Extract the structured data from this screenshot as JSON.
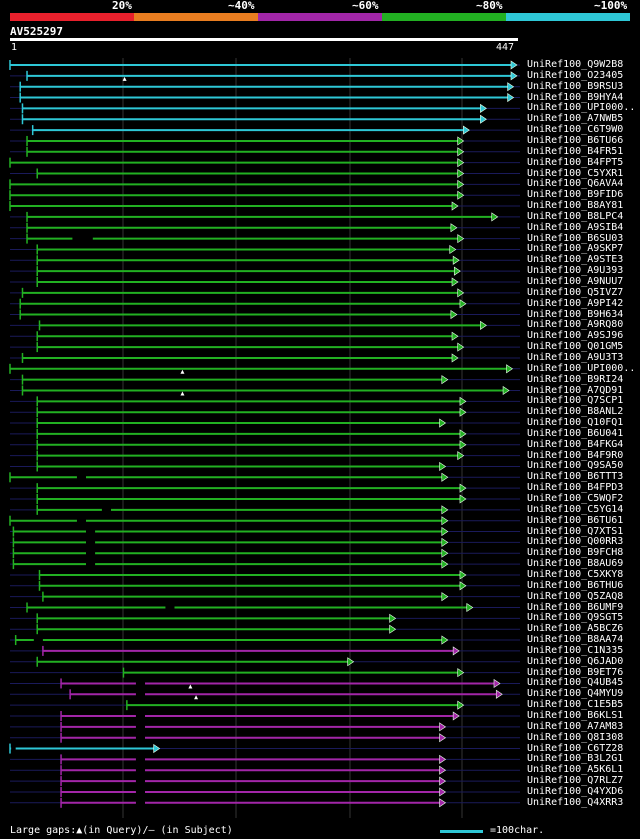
{
  "legend": {
    "labels": [
      "20%",
      "~40%",
      "~60%",
      "~80%",
      "~100%"
    ],
    "colors": [
      "#e8202c",
      "#e87d20",
      "#a226a8",
      "#22b022",
      "#2ec7d6"
    ]
  },
  "query": {
    "name": "AV525297",
    "start": "1",
    "end": "447",
    "length": 447
  },
  "hits": [
    {
      "label": "UniRef100_Q9W2B",
      "sub": "8",
      "color": "cyan",
      "start": 1,
      "end": 447
    },
    {
      "label": "UniRef100_O23405",
      "color": "cyan",
      "start": 16,
      "end": 447,
      "mark": 102
    },
    {
      "label": "UniRef100_B9RSU3",
      "color": "cyan",
      "start": 10,
      "end": 444
    },
    {
      "label": "UniRef100_B9HYA4",
      "color": "cyan",
      "start": 10,
      "end": 444
    },
    {
      "label": "UniRef100_UPI000..",
      "color": "cyan",
      "start": 12,
      "end": 420
    },
    {
      "label": "UniRef100_A7NWB5",
      "color": "cyan",
      "start": 12,
      "end": 420
    },
    {
      "label": "UniRef100_C6T9W0",
      "color": "cyan",
      "start": 21,
      "end": 405
    },
    {
      "label": "UniRef100_B6TU66",
      "color": "green",
      "start": 16,
      "end": 400
    },
    {
      "label": "UniRef100_B4FR51",
      "color": "green",
      "start": 16,
      "end": 400
    },
    {
      "label": "UniRef100_B4FPT5",
      "color": "green",
      "start": 1,
      "end": 400
    },
    {
      "label": "UniRef100_C5YXR1",
      "color": "green",
      "start": 25,
      "end": 400
    },
    {
      "label": "UniRef100_Q6AVA4",
      "color": "green",
      "start": 1,
      "end": 400
    },
    {
      "label": "UniRef100_B9FID6",
      "color": "green",
      "start": 1,
      "end": 400
    },
    {
      "label": "UniRef100_B8AY81",
      "color": "green",
      "start": 1,
      "end": 395
    },
    {
      "label": "UniRef100_B8LPC4",
      "color": "green",
      "start": 16,
      "end": 430
    },
    {
      "label": "UniRef100_A9SIB4",
      "color": "green",
      "start": 16,
      "end": 394
    },
    {
      "label": "UniRef100_B6SU03",
      "color": "green",
      "start": 16,
      "end": 400,
      "gap": [
        56,
        74
      ]
    },
    {
      "label": "UniRef100_A9SKP7",
      "color": "green",
      "start": 25,
      "end": 393
    },
    {
      "label": "UniRef100_A9STE3",
      "color": "green",
      "start": 25,
      "end": 396
    },
    {
      "label": "UniRef100_A9U393",
      "color": "green",
      "start": 25,
      "end": 397
    },
    {
      "label": "UniRef100_A9NUU7",
      "color": "green",
      "start": 25,
      "end": 395
    },
    {
      "label": "UniRef100_Q5IVZ7",
      "color": "green",
      "start": 12,
      "end": 400
    },
    {
      "label": "UniRef100_A9PI42",
      "color": "green",
      "start": 10,
      "end": 402
    },
    {
      "label": "UniRef100_B9H634",
      "color": "green",
      "start": 10,
      "end": 394
    },
    {
      "label": "UniRef100_A9RQ80",
      "color": "green",
      "start": 27,
      "end": 420
    },
    {
      "label": "UniRef100_A9SJ96",
      "color": "green",
      "start": 25,
      "end": 395
    },
    {
      "label": "UniRef100_Q01GM5",
      "color": "green",
      "start": 25,
      "end": 400
    },
    {
      "label": "UniRef100_A9U3T3",
      "color": "green",
      "start": 12,
      "end": 395
    },
    {
      "label": "UniRef100_UPI000..",
      "color": "green",
      "start": 1,
      "end": 443,
      "mark": 153
    },
    {
      "label": "UniRef100_B9RI24",
      "color": "green",
      "start": 12,
      "end": 386
    },
    {
      "label": "UniRef100_A7QD91",
      "color": "green",
      "start": 12,
      "end": 440,
      "mark": 153
    },
    {
      "label": "UniRef100_Q7SCP1",
      "color": "green",
      "start": 25,
      "end": 402
    },
    {
      "label": "UniRef100_B8ANL2",
      "color": "green",
      "start": 25,
      "end": 402
    },
    {
      "label": "UniRef100_Q10FQ1",
      "color": "green",
      "start": 25,
      "end": 384
    },
    {
      "label": "UniRef100_B6U041",
      "color": "green",
      "start": 25,
      "end": 402
    },
    {
      "label": "UniRef100_B4FKG4",
      "color": "green",
      "start": 25,
      "end": 402
    },
    {
      "label": "UniRef100_B4F9R0",
      "color": "green",
      "start": 25,
      "end": 400
    },
    {
      "label": "UniRef100_Q9SA50",
      "color": "green",
      "start": 25,
      "end": 384
    },
    {
      "label": "UniRef100_B6TTT3",
      "color": "green",
      "start": 1,
      "end": 386,
      "gap": [
        60,
        68
      ]
    },
    {
      "label": "UniRef100_B4FPD3",
      "color": "green",
      "start": 25,
      "end": 402
    },
    {
      "label": "UniRef100_C5WQF2",
      "color": "green",
      "start": 25,
      "end": 402
    },
    {
      "label": "UniRef100_C5YG14",
      "color": "green",
      "start": 25,
      "end": 386,
      "gap": [
        82,
        90
      ]
    },
    {
      "label": "UniRef100_B6TU61",
      "color": "green",
      "start": 1,
      "end": 386,
      "gap": [
        60,
        68
      ]
    },
    {
      "label": "UniRef100_Q7XTS1",
      "color": "green",
      "start": 4,
      "end": 386,
      "gap": [
        68,
        76
      ]
    },
    {
      "label": "UniRef100_Q00RR3",
      "color": "green",
      "start": 4,
      "end": 386,
      "gap": [
        68,
        76
      ]
    },
    {
      "label": "UniRef100_B9FCH8",
      "color": "green",
      "start": 4,
      "end": 386,
      "gap": [
        68,
        76
      ]
    },
    {
      "label": "UniRef100_B8AU69",
      "color": "green",
      "start": 4,
      "end": 386,
      "gap": [
        68,
        76
      ]
    },
    {
      "label": "UniRef100_C5XKY8",
      "color": "green",
      "start": 27,
      "end": 402
    },
    {
      "label": "UniRef100_B6THU6",
      "color": "green",
      "start": 27,
      "end": 402
    },
    {
      "label": "UniRef100_Q5ZAQ8",
      "color": "green",
      "start": 30,
      "end": 386
    },
    {
      "label": "UniRef100_B6UMF9",
      "color": "green",
      "start": 16,
      "end": 408,
      "gap": [
        138,
        146
      ]
    },
    {
      "label": "UniRef100_Q9SGT5",
      "color": "green",
      "start": 25,
      "end": 340
    },
    {
      "label": "UniRef100_A5BCZ6",
      "color": "green",
      "start": 25,
      "end": 340
    },
    {
      "label": "UniRef100_B8AA74",
      "color": "green",
      "start": 6,
      "end": 386,
      "gap": [
        22,
        30
      ]
    },
    {
      "label": "UniRef100_C1N335",
      "color": "purple",
      "start": 30,
      "end": 396
    },
    {
      "label": "UniRef100_Q6JAD0",
      "color": "green",
      "start": 25,
      "end": 303
    },
    {
      "label": "UniRef100_B9ET76",
      "color": "green",
      "start": 101,
      "end": 400
    },
    {
      "label": "UniRef100_Q4UB45",
      "color": "purple",
      "start": 46,
      "end": 432,
      "gap": [
        112,
        120
      ],
      "mark": 160
    },
    {
      "label": "UniRef100_Q4MYU9",
      "color": "purple",
      "start": 54,
      "end": 434,
      "gap": [
        112,
        120
      ],
      "mark": 165
    },
    {
      "label": "UniRef100_C1E5B5",
      "color": "green",
      "start": 104,
      "end": 400
    },
    {
      "label": "UniRef100_B6KLS1",
      "color": "purple",
      "start": 46,
      "end": 396,
      "gap": [
        112,
        120
      ]
    },
    {
      "label": "UniRef100_A7AM83",
      "color": "purple",
      "start": 46,
      "end": 384,
      "gap": [
        112,
        120
      ]
    },
    {
      "label": "UniRef100_Q8I308",
      "color": "purple",
      "start": 46,
      "end": 384,
      "gap": [
        112,
        120
      ]
    },
    {
      "label": "UniRef100_C6TZ28",
      "color": "cyan",
      "start": 1,
      "end": 132,
      "gap": [
        2,
        6
      ]
    },
    {
      "label": "UniRef100_B3L2G1",
      "color": "purple",
      "start": 46,
      "end": 384,
      "gap": [
        112,
        120
      ]
    },
    {
      "label": "UniRef100_A5K6L1",
      "color": "purple",
      "start": 46,
      "end": 384,
      "gap": [
        112,
        120
      ]
    },
    {
      "label": "UniRef100_Q7RLZ7",
      "color": "purple",
      "start": 46,
      "end": 384,
      "gap": [
        112,
        120
      ]
    },
    {
      "label": "UniRef100_Q4YXD6",
      "color": "purple",
      "start": 46,
      "end": 384,
      "gap": [
        112,
        120
      ]
    },
    {
      "label": "UniRef100_Q4XRR3",
      "color": "purple",
      "start": 46,
      "end": 384,
      "gap": [
        112,
        120
      ]
    }
  ],
  "footer": {
    "gaps_text": "Large gaps:▲(in Query)/– (in Subject)",
    "scale_text": "=100char."
  }
}
